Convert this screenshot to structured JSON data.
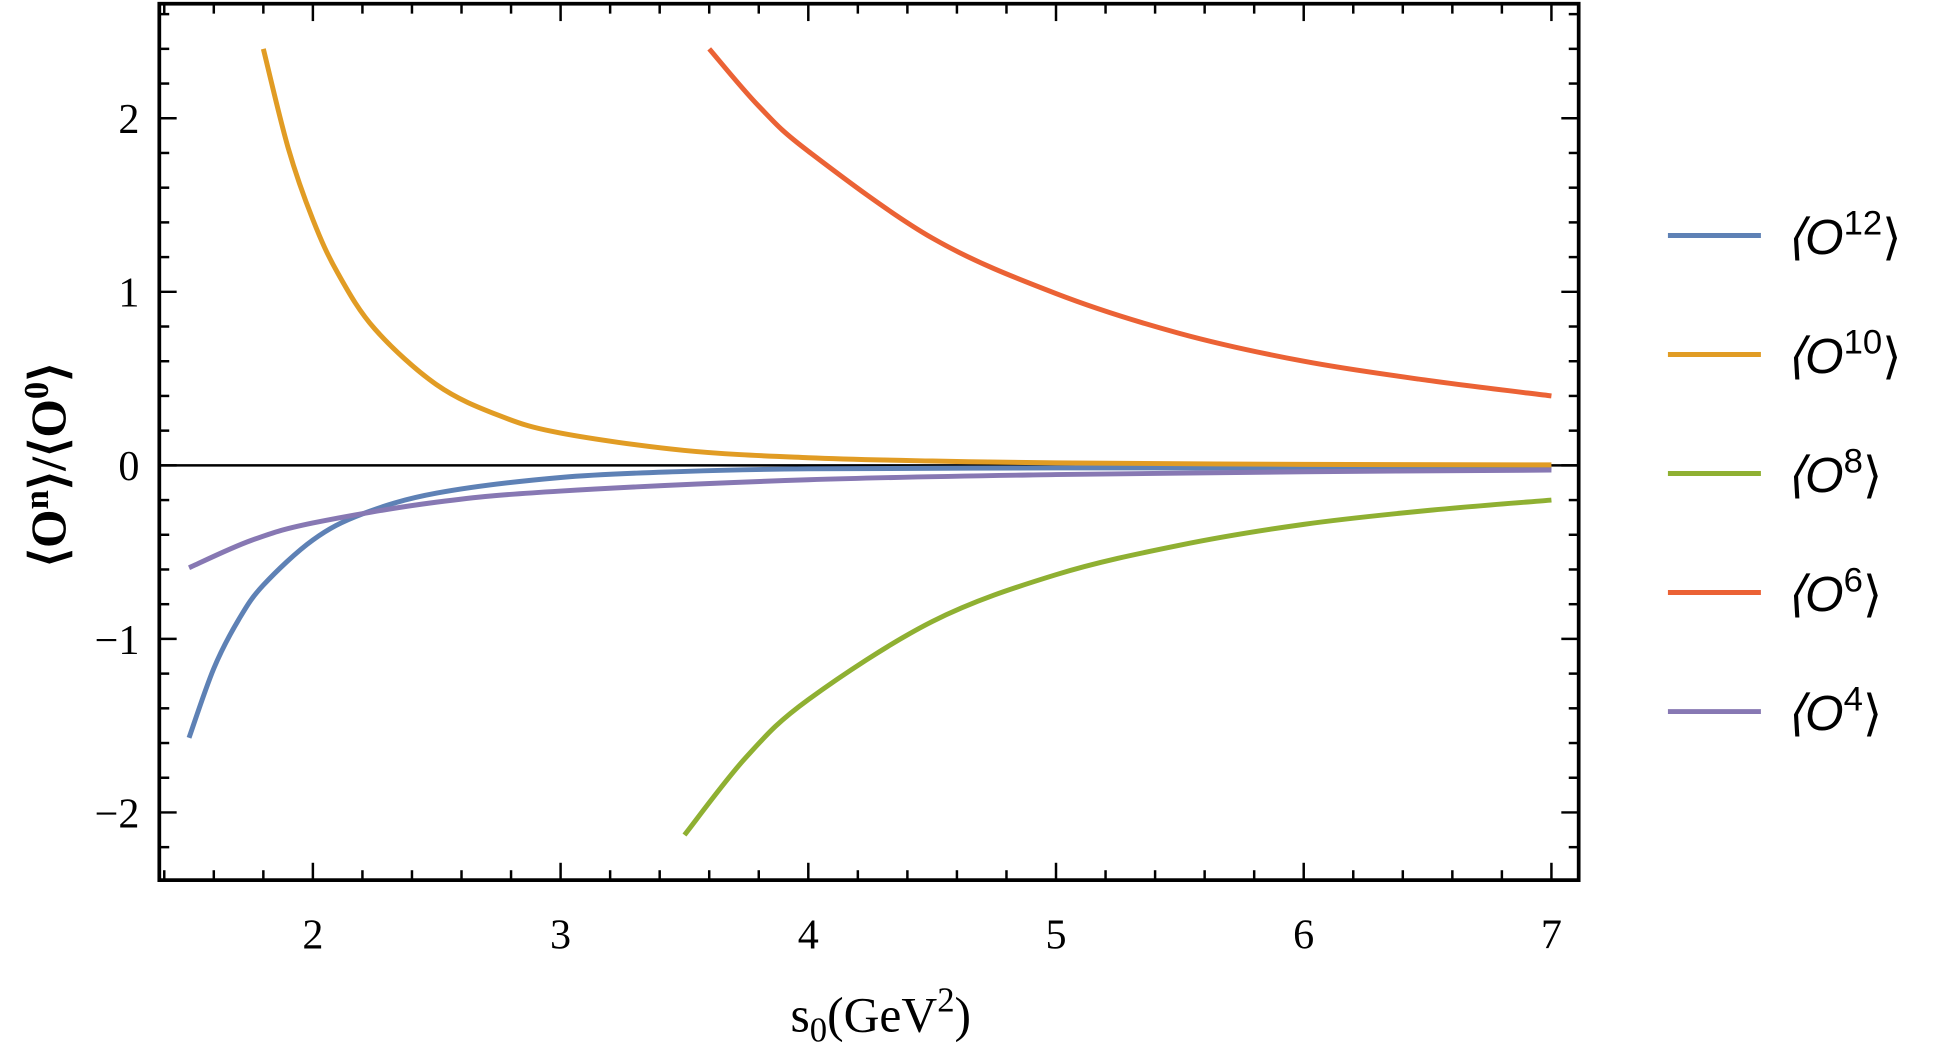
{
  "chart_data": {
    "type": "line",
    "title": "",
    "xlabel": "s0(GeV2)",
    "xlabel_parts": {
      "base": "s",
      "sub": "0",
      "open": "(GeV",
      "sup": "2",
      "close": ")"
    },
    "ylabel": "⟨On⟩/⟨O0⟩",
    "ylabel_parts": {
      "a": "⟨O",
      "a_sup": "n",
      "b": "⟩/⟨O",
      "b_sup": "0",
      "c": "⟩"
    },
    "xlim": [
      1.38,
      7.11
    ],
    "ylim": [
      -2.39,
      2.66
    ],
    "x_ticks": [
      "2",
      "3",
      "4",
      "5",
      "6",
      "7"
    ],
    "y_ticks": [
      "-2",
      "-1",
      "0",
      "1",
      "2"
    ],
    "grid": false,
    "legend_position": "right",
    "series": [
      {
        "name": "⟨O12⟩",
        "base": "⟨O",
        "sup": "12",
        "close": "⟩",
        "color": "#5E81B5",
        "x": [
          1.5,
          1.6,
          1.7,
          1.8,
          2.0,
          2.2,
          2.5,
          3.0,
          3.5,
          4.0,
          5.0,
          6.0,
          7.0
        ],
        "y": [
          -1.57,
          -1.17,
          -0.89,
          -0.69,
          -0.43,
          -0.28,
          -0.16,
          -0.07,
          -0.035,
          -0.02,
          -0.015,
          -0.015,
          -0.015
        ]
      },
      {
        "name": "⟨O10⟩",
        "base": "⟨O",
        "sup": "10",
        "close": "⟩",
        "color": "#E19C24",
        "x": [
          1.8,
          1.9,
          2.0,
          2.1,
          2.25,
          2.5,
          2.75,
          3.0,
          3.5,
          4.0,
          4.5,
          5.0,
          6.0,
          7.0
        ],
        "y": [
          2.4,
          1.83,
          1.416,
          1.109,
          0.786,
          0.464,
          0.288,
          0.186,
          0.086,
          0.044,
          0.025,
          0.0145,
          0.0058,
          0.0027
        ]
      },
      {
        "name": "⟨O8⟩",
        "base": "⟨O",
        "sup": "8",
        "close": "⟩",
        "color": "#8FB032",
        "x": [
          3.5,
          3.75,
          4.0,
          4.5,
          5.0,
          5.5,
          6.0,
          6.5,
          7.0
        ],
        "y": [
          -2.13,
          -1.68,
          -1.35,
          -0.9,
          -0.63,
          -0.46,
          -0.34,
          -0.26,
          -0.2
        ]
      },
      {
        "name": "⟨O6⟩",
        "base": "⟨O",
        "sup": "6",
        "close": "⟩",
        "color": "#EB6235",
        "x": [
          3.6,
          3.8,
          4.0,
          4.5,
          5.0,
          5.5,
          6.0,
          6.5,
          7.0
        ],
        "y": [
          2.4,
          2.07,
          1.81,
          1.31,
          0.99,
          0.76,
          0.6,
          0.49,
          0.4
        ]
      },
      {
        "name": "⟨O4⟩",
        "base": "⟨O",
        "sup": "4",
        "close": "⟩",
        "color": "#8778B3",
        "x": [
          1.5,
          1.75,
          2.0,
          2.5,
          3.0,
          4.0,
          5.0,
          6.0,
          7.0
        ],
        "y": [
          -0.59,
          -0.433,
          -0.332,
          -0.212,
          -0.148,
          -0.083,
          -0.053,
          -0.037,
          -0.027
        ]
      }
    ]
  }
}
